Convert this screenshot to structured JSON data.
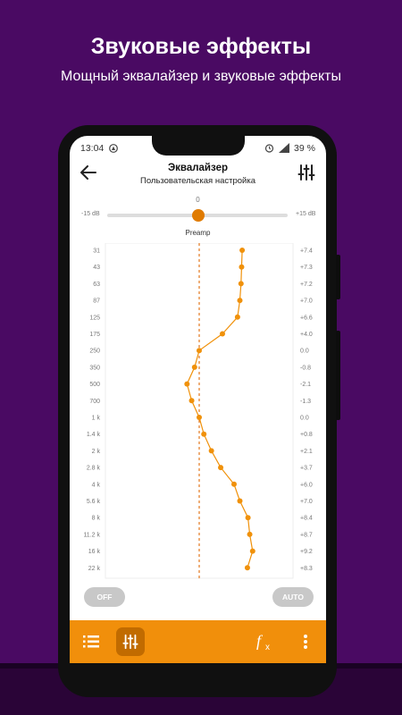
{
  "promo": {
    "title": "Звуковые эффекты",
    "subtitle": "Мощный эквалайзер и звуковые эффекты"
  },
  "status_bar": {
    "time": "13:04",
    "battery": "39 %"
  },
  "toolbar": {
    "title": "Эквалайзер",
    "subtitle": "Пользовательская настройка"
  },
  "preamp": {
    "value": "0",
    "min_label": "-15 dB",
    "max_label": "+15 dB",
    "label": "Preamp",
    "level": 0.5
  },
  "eq": {
    "frequencies": [
      "31",
      "43",
      "63",
      "87",
      "125",
      "175",
      "250",
      "350",
      "500",
      "700",
      "1 k",
      "1.4 k",
      "2 k",
      "2.8 k",
      "4 k",
      "5.6 k",
      "8 k",
      "11.2 k",
      "16 k",
      "22 k"
    ],
    "gain_labels": [
      "+7.4",
      "+7.3",
      "+7.2",
      "+7.0",
      "+6.6",
      "+4.0",
      "0.0",
      "-0.8",
      "-2.1",
      "-1.3",
      "0.0",
      "+0.8",
      "+2.1",
      "+3.7",
      "+6.0",
      "+7.0",
      "+8.4",
      "+8.7",
      "+9.2",
      "+8.3"
    ],
    "gains": [
      7.4,
      7.3,
      7.2,
      7.0,
      6.6,
      4.0,
      0.0,
      -0.8,
      -2.1,
      -1.3,
      0.0,
      0.8,
      2.1,
      3.7,
      6.0,
      7.0,
      8.4,
      8.7,
      9.2,
      8.3
    ],
    "range": [
      -15,
      15
    ],
    "line_color": "#f0910a"
  },
  "buttons": {
    "off": "OFF",
    "auto": "AUTO"
  },
  "bottom_nav": {
    "color": "#f18f0b"
  }
}
